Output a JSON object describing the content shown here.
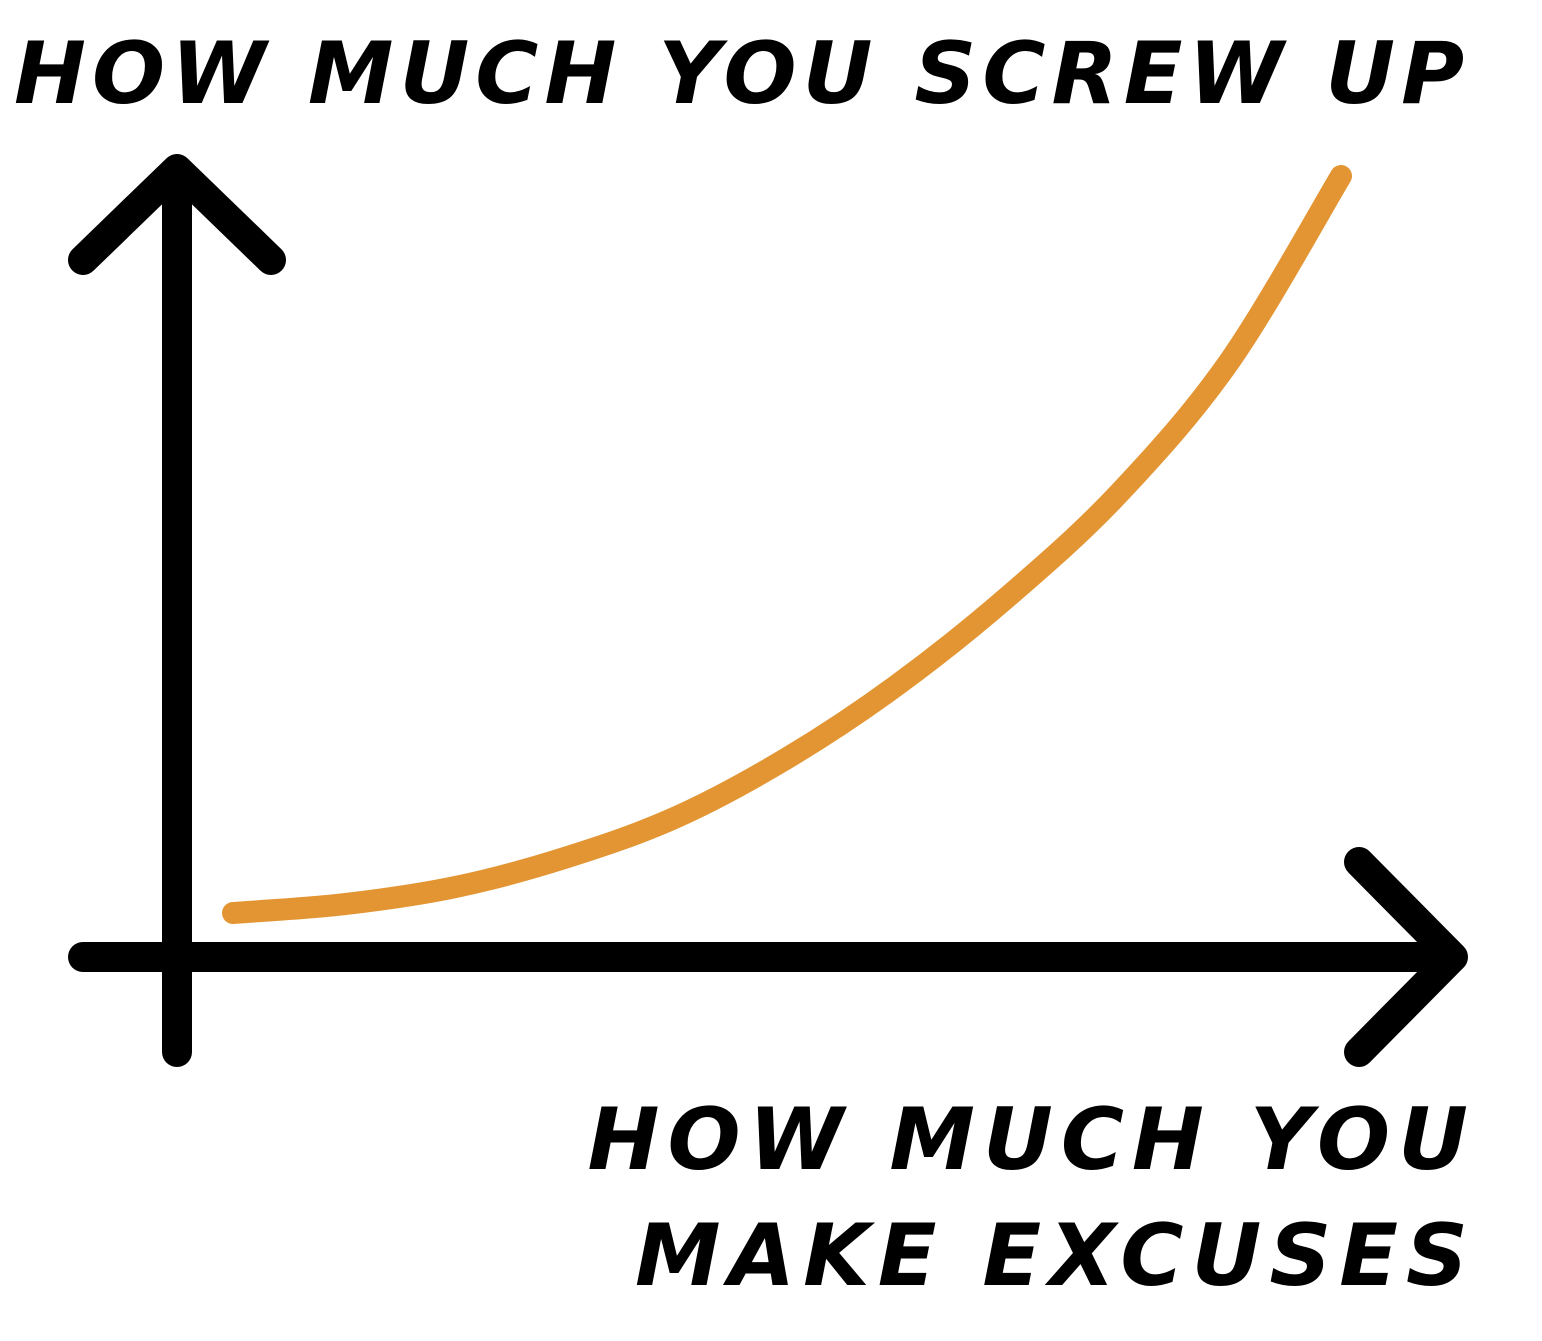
{
  "chart_data": {
    "type": "line",
    "title": "",
    "ylabel": "HOW MUCH YOU SCREW UP",
    "xlabel": "HOW MUCH YOU MAKE EXCUSES",
    "xlim": [
      0,
      1
    ],
    "ylim": [
      0,
      1
    ],
    "grid": false,
    "legend": "none",
    "axis_color": "#000000",
    "line_color": "#E29532",
    "series": [
      {
        "x": [
          0.0,
          0.1,
          0.2,
          0.3,
          0.4,
          0.5,
          0.6,
          0.7,
          0.8,
          0.9,
          1.0
        ],
        "y": [
          0.0,
          0.012,
          0.035,
          0.075,
          0.13,
          0.21,
          0.31,
          0.43,
          0.57,
          0.75,
          1.0
        ]
      }
    ]
  }
}
